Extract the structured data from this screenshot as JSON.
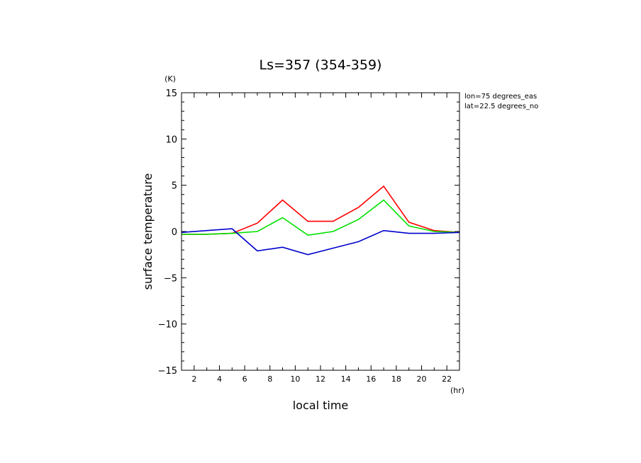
{
  "chart_data": {
    "type": "line",
    "title": "Ls=357 (354-359)",
    "xlabel": "local time",
    "ylabel": "surface temperature",
    "xunit": "(hr)",
    "yunit": "(K)",
    "annotations": [
      "lon=75 degrees_eas",
      "lat=22.5 degrees_no"
    ],
    "xlim": [
      1,
      23
    ],
    "ylim": [
      -15,
      15
    ],
    "xticks": [
      2,
      4,
      6,
      8,
      10,
      12,
      14,
      16,
      18,
      20,
      22
    ],
    "yticks": [
      -15,
      -10,
      -5,
      0,
      5,
      10,
      15
    ],
    "x": [
      1,
      3,
      5,
      7,
      9,
      11,
      13,
      15,
      17,
      19,
      21,
      23
    ],
    "series": [
      {
        "color": "#ff0000",
        "values": [
          -0.3,
          -0.3,
          -0.2,
          0.9,
          3.4,
          1.1,
          1.1,
          2.6,
          4.9,
          1.0,
          0.1,
          -0.1
        ]
      },
      {
        "color": "#00e000",
        "values": [
          -0.3,
          -0.3,
          -0.2,
          0.0,
          1.5,
          -0.4,
          0.0,
          1.3,
          3.4,
          0.6,
          0.0,
          -0.1
        ]
      },
      {
        "color": "#0000cc",
        "values": [
          -0.1,
          0.1,
          0.3,
          -2.1,
          -1.7,
          -2.5,
          -1.8,
          -1.1,
          0.1,
          -0.2,
          -0.2,
          -0.1
        ]
      }
    ],
    "grid": false
  }
}
